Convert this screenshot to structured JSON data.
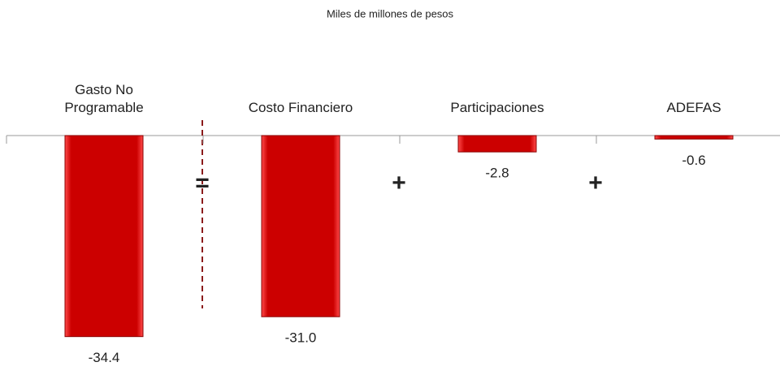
{
  "chart_data": {
    "type": "bar",
    "title": "Miles de millones de pesos",
    "categories": [
      "Gasto No Programable",
      "Costo Financiero",
      "Participaciones",
      "ADEFAS"
    ],
    "values": [
      -34.4,
      -31.0,
      -2.8,
      -0.6
    ],
    "value_labels": [
      "-34.4",
      "-31.0",
      "-2.8",
      "-0.6"
    ],
    "color": "#cc0000",
    "annotations": [
      "=",
      "+",
      "+"
    ]
  }
}
